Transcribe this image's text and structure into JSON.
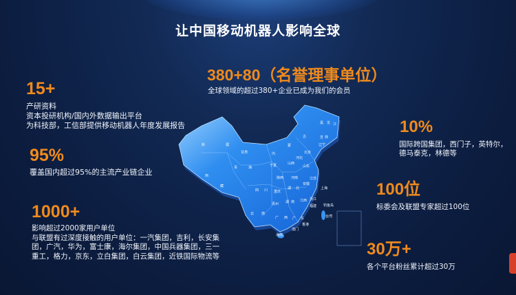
{
  "title": "让中国移动机器人影响全球",
  "accent_color": "#f08a1c",
  "stats": {
    "research": {
      "value": "15+",
      "lines": [
        "产研资料",
        "资本投研机构/国内外数据输出平台",
        "为科技部，工信部提供移动机器人年度发展报告"
      ]
    },
    "coverage": {
      "value": "95%",
      "lines": [
        "覆盖国内超过95%的主流产业链企业"
      ]
    },
    "users": {
      "value": "1000+",
      "lines": [
        "影响超过2000家用户单位",
        "与联盟有过深度接触的用户单位：一汽集团，吉利，长安集",
        "团，广汽，华为，富士康，海尔集团，中国兵器集团，三一",
        "重工，格力，京东，立白集团，白云集团，近铁国际物流等"
      ]
    },
    "members": {
      "value": "380+80（名誉理事单位）",
      "lines": [
        "全球领域的超过380+企业已成为我们的会员"
      ]
    },
    "international": {
      "value": "10%",
      "lines": [
        "国际跨国集团，西门子，英特尔，",
        "德马泰克，林德等"
      ]
    },
    "experts": {
      "value": "100位",
      "lines": [
        "标委会及联盟专家超过100位"
      ]
    },
    "fans": {
      "value": "30万+",
      "lines": [
        "各个平台粉丝累计超过30万"
      ]
    }
  },
  "map": {
    "provinces": [
      "新",
      "疆",
      "西",
      "藏",
      "青",
      "海",
      "甘肃",
      "内",
      "蒙",
      "古",
      "黑",
      "龙",
      "江",
      "吉",
      "林",
      "辽宁",
      "北京",
      "河北",
      "山西",
      "山东",
      "宁夏",
      "陕西",
      "河南",
      "江苏",
      "安徽",
      "上海",
      "四",
      "川",
      "重庆",
      "湖",
      "北",
      "浙江",
      "贵州",
      "湖",
      "南",
      "江西",
      "福建",
      "云",
      "南",
      "广",
      "西",
      "广",
      "东",
      "台湾",
      "香港",
      "澳门",
      "海南",
      "钓鱼岛"
    ]
  }
}
